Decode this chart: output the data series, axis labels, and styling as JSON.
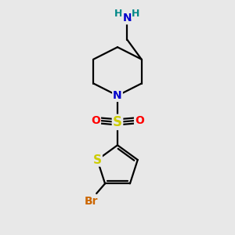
{
  "bg_color": "#e8e8e8",
  "atom_colors": {
    "N": "#0000cc",
    "S_sulfonyl": "#cccc00",
    "S_thio": "#cccc00",
    "O": "#ff0000",
    "Br": "#cc6600",
    "C": "#000000",
    "H": "#008888"
  },
  "font_size": 10,
  "bond_color": "#000000",
  "bond_width": 1.6
}
